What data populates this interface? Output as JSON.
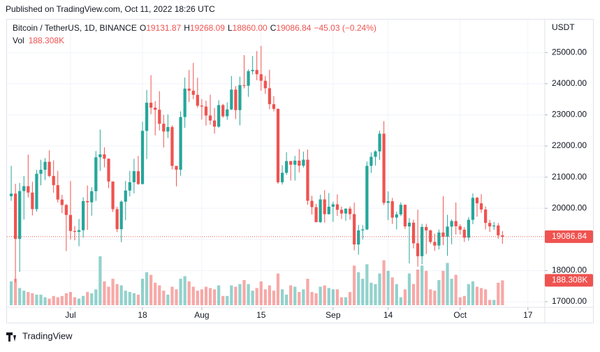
{
  "published": "Published on TradingView.com, Oct 11, 2022 18:26 UTC",
  "footer": "TradingView",
  "chart_data": {
    "type": "candlestick",
    "symbol": "Bitcoin / TetherUS, 1D, BINANCE",
    "info_keys": [
      "O",
      "H",
      "L",
      "C"
    ],
    "info_values": [
      "19131.87",
      "19268.09",
      "18860.00",
      "19086.84"
    ],
    "change": "−45.03 (−0.24%)",
    "volume_title": "Vol",
    "volume_label": "188.308K",
    "currency": "USDT",
    "up_color": "#26a69a",
    "down_color": "#ef5350",
    "x": [
      "2022-06-17",
      "2022-06-18",
      "2022-06-19",
      "2022-06-20",
      "2022-06-21",
      "2022-06-22",
      "2022-06-23",
      "2022-06-24",
      "2022-06-25",
      "2022-06-26",
      "2022-06-27",
      "2022-06-28",
      "2022-06-29",
      "2022-06-30",
      "2022-07-01",
      "2022-07-02",
      "2022-07-03",
      "2022-07-04",
      "2022-07-05",
      "2022-07-06",
      "2022-07-07",
      "2022-07-08",
      "2022-07-09",
      "2022-07-10",
      "2022-07-11",
      "2022-07-12",
      "2022-07-13",
      "2022-07-14",
      "2022-07-15",
      "2022-07-16",
      "2022-07-17",
      "2022-07-18",
      "2022-07-19",
      "2022-07-20",
      "2022-07-21",
      "2022-07-22",
      "2022-07-23",
      "2022-07-24",
      "2022-07-25",
      "2022-07-26",
      "2022-07-27",
      "2022-07-28",
      "2022-07-29",
      "2022-07-30",
      "2022-07-31",
      "2022-08-01",
      "2022-08-02",
      "2022-08-03",
      "2022-08-04",
      "2022-08-05",
      "2022-08-06",
      "2022-08-07",
      "2022-08-08",
      "2022-08-09",
      "2022-08-10",
      "2022-08-11",
      "2022-08-12",
      "2022-08-13",
      "2022-08-14",
      "2022-08-15",
      "2022-08-16",
      "2022-08-17",
      "2022-08-18",
      "2022-08-19",
      "2022-08-20",
      "2022-08-21",
      "2022-08-22",
      "2022-08-23",
      "2022-08-24",
      "2022-08-25",
      "2022-08-26",
      "2022-08-27",
      "2022-08-28",
      "2022-08-29",
      "2022-08-30",
      "2022-08-31",
      "2022-09-01",
      "2022-09-02",
      "2022-09-03",
      "2022-09-04",
      "2022-09-05",
      "2022-09-06",
      "2022-09-07",
      "2022-09-08",
      "2022-09-09",
      "2022-09-10",
      "2022-09-11",
      "2022-09-12",
      "2022-09-13",
      "2022-09-14",
      "2022-09-15",
      "2022-09-16",
      "2022-09-17",
      "2022-09-18",
      "2022-09-19",
      "2022-09-20",
      "2022-09-21",
      "2022-09-22",
      "2022-09-23",
      "2022-09-24",
      "2022-09-25",
      "2022-09-26",
      "2022-09-27",
      "2022-09-28",
      "2022-09-29",
      "2022-09-30",
      "2022-10-01",
      "2022-10-02",
      "2022-10-03",
      "2022-10-04",
      "2022-10-05",
      "2022-10-06",
      "2022-10-07",
      "2022-10-08",
      "2022-10-09",
      "2022-10-10",
      "2022-10-11"
    ],
    "open": [
      20386,
      20471,
      19017,
      20553,
      20710,
      20504,
      19973,
      21109,
      21237,
      21492,
      21038,
      20742,
      20281,
      20105,
      19785,
      19270,
      19243,
      19297,
      20231,
      20191,
      20548,
      21637,
      21731,
      21592,
      20860,
      19971,
      19329,
      20212,
      20569,
      20836,
      21190,
      20779,
      22485,
      23389,
      23231,
      23164,
      22714,
      22465,
      22609,
      21361,
      21239,
      22930,
      23843,
      23775,
      23643,
      23296,
      23266,
      22978,
      22818,
      22622,
      23313,
      22954,
      23175,
      23810,
      23151,
      23954,
      23934,
      24401,
      24442,
      24305,
      24093,
      23856,
      23342,
      23191,
      20834,
      21140,
      21516,
      21399,
      21529,
      21368,
      21560,
      20240,
      20037,
      19555,
      20285,
      19811,
      20050,
      20127,
      19952,
      19832,
      19987,
      19813,
      18838,
      19290,
      19320,
      21362,
      21652,
      21826,
      22395,
      20173,
      20227,
      19702,
      19803,
      20113,
      19417,
      19537,
      18875,
      18461,
      19401,
      19289,
      18920,
      18803,
      19222,
      19084,
      19412,
      19591,
      19423,
      19311,
      19057,
      19629,
      20338,
      20158,
      19960,
      19530,
      19417,
      19446,
      19131.87
    ],
    "high": [
      21365,
      20783,
      20815,
      21035,
      21723,
      20850,
      21233,
      21557,
      21614,
      21862,
      21540,
      21200,
      20432,
      20141,
      20876,
      19432,
      19656,
      20354,
      20731,
      20675,
      21839,
      22527,
      21956,
      21600,
      20860,
      20046,
      20250,
      20880,
      21200,
      21588,
      21683,
      22777,
      23800,
      24276,
      23442,
      23757,
      22998,
      23014,
      22663,
      21361,
      23112,
      24199,
      24442,
      24668,
      24194,
      23509,
      23459,
      23647,
      23218,
      23472,
      23354,
      23402,
      24245,
      23926,
      24226,
      24918,
      24456,
      24888,
      25047,
      25211,
      24247,
      24446,
      23600,
      23208,
      21382,
      21800,
      21520,
      21683,
      21900,
      21819,
      21885,
      20402,
      20144,
      20436,
      20580,
      20490,
      20209,
      20444,
      20055,
      20000,
      20058,
      20180,
      19464,
      19459,
      21500,
      21795,
      21860,
      22488,
      22799,
      20541,
      20332,
      19890,
      20189,
      20115,
      19686,
      19634,
      19956,
      19500,
      19500,
      19316,
      19180,
      19316,
      20385,
      19790,
      19645,
      20185,
      19484,
      19395,
      19719,
      20475,
      20365,
      20456,
      20058,
      19627,
      19560,
      19526,
      19268.09
    ],
    "low": [
      20238,
      17622,
      17961,
      19638,
      20349,
      19771,
      19892,
      20737,
      20906,
      21000,
      20499,
      20188,
      19847,
      18626,
      19000,
      18975,
      18782,
      19056,
      19304,
      19762,
      20236,
      21202,
      21316,
      20646,
      19881,
      19235,
      18910,
      19616,
      20383,
      20478,
      20750,
      20763,
      21581,
      23023,
      22341,
      22500,
      21950,
      22257,
      21250,
      20706,
      21043,
      22582,
      23414,
      23502,
      23227,
      22850,
      22654,
      22681,
      22400,
      22586,
      22909,
      22839,
      23155,
      22865,
      22664,
      23852,
      23580,
      24296,
      24111,
      23773,
      23671,
      23180,
      23111,
      20783,
      20761,
      21070,
      20890,
      20890,
      21152,
      21310,
      20112,
      19800,
      19549,
      19530,
      19540,
      19797,
      19565,
      19754,
      19655,
      19600,
      19633,
      18649,
      18510,
      19000,
      19298,
      21136,
      21370,
      21551,
      20100,
      19620,
      19497,
      19320,
      19748,
      19335,
      18232,
      18711,
      18125,
      18200,
      18531,
      18861,
      18634,
      18680,
      18816,
      18471,
      18843,
      19155,
      19160,
      18920,
      18959,
      19490,
      19730,
      19855,
      19320,
      19240,
      19310,
      19021,
      18860
    ],
    "close": [
      20471,
      19017,
      20553,
      20710,
      20504,
      19973,
      21109,
      21237,
      21492,
      21038,
      20742,
      20281,
      20105,
      19785,
      19270,
      19243,
      19297,
      20231,
      20191,
      20548,
      21637,
      21731,
      21592,
      20860,
      19971,
      19329,
      20212,
      20569,
      20836,
      21190,
      20779,
      22485,
      23389,
      23231,
      23164,
      22714,
      22465,
      22609,
      21361,
      21239,
      22930,
      23843,
      23775,
      23643,
      23293,
      23266,
      22978,
      22818,
      22622,
      23313,
      22954,
      23175,
      23810,
      23151,
      23954,
      23934,
      24403,
      24441,
      24305,
      24094,
      23854,
      23342,
      23191,
      20834,
      21140,
      21516,
      21399,
      21529,
      21368,
      21560,
      20241,
      20037,
      19555,
      20285,
      19811,
      20050,
      20127,
      19952,
      19832,
      19986,
      19812,
      18838,
      19290,
      19320,
      21362,
      21652,
      21826,
      22395,
      20173,
      20226,
      19701,
      19803,
      20113,
      19417,
      19537,
      18875,
      18461,
      19401,
      19289,
      18920,
      18803,
      19222,
      19084,
      19412,
      19591,
      19423,
      19310,
      19056,
      19629,
      20337,
      20158,
      19960,
      19530,
      19417,
      19446,
      19131,
      19086.84
    ],
    "volume": [
      180000,
      200000,
      130000,
      110000,
      100000,
      90000,
      80000,
      80000,
      60000,
      50000,
      70000,
      60000,
      70000,
      90000,
      100000,
      60000,
      50000,
      70000,
      100000,
      90000,
      120000,
      370000,
      180000,
      140000,
      200000,
      160000,
      150000,
      110000,
      100000,
      90000,
      80000,
      200000,
      250000,
      230000,
      170000,
      150000,
      110000,
      80000,
      140000,
      120000,
      200000,
      220000,
      180000,
      140000,
      110000,
      120000,
      140000,
      130000,
      120000,
      150000,
      70000,
      70000,
      150000,
      140000,
      160000,
      190000,
      160000,
      110000,
      130000,
      180000,
      120000,
      150000,
      110000,
      240000,
      120000,
      80000,
      150000,
      140000,
      100000,
      120000,
      200000,
      100000,
      90000,
      140000,
      150000,
      130000,
      120000,
      120000,
      60000,
      60000,
      100000,
      300000,
      250000,
      200000,
      310000,
      170000,
      160000,
      240000,
      340000,
      260000,
      210000,
      160000,
      60000,
      120000,
      240000,
      160000,
      270000,
      300000,
      260000,
      120000,
      110000,
      190000,
      260000,
      320000,
      200000,
      230000,
      60000,
      70000,
      160000,
      180000,
      140000,
      130000,
      120000,
      40000,
      40000,
      170000,
      188308
    ],
    "xlim": [
      "2022-06-16",
      "2022-10-21"
    ],
    "xticks": [
      {
        "value": "2022-07-01",
        "label": "Jul"
      },
      {
        "value": "2022-07-18",
        "label": "18"
      },
      {
        "value": "2022-08-01",
        "label": "Aug"
      },
      {
        "value": "2022-08-15",
        "label": "15"
      },
      {
        "value": "2022-09-01",
        "label": "Sep"
      },
      {
        "value": "2022-09-14",
        "label": "14"
      },
      {
        "value": "2022-10-01",
        "label": "Oct"
      },
      {
        "value": "2022-10-17",
        "label": "17"
      }
    ],
    "ylim": [
      16820,
      26060
    ],
    "yticks": [
      {
        "value": 17000,
        "label": "17000.00"
      },
      {
        "value": 18000,
        "label": "18000.00"
      },
      {
        "value": 19000,
        "label": "19000.00"
      },
      {
        "value": 20000,
        "label": "20000.00"
      },
      {
        "value": 21000,
        "label": "21000.00"
      },
      {
        "value": 22000,
        "label": "22000.00"
      },
      {
        "value": 23000,
        "label": "23000.00"
      },
      {
        "value": 24000,
        "label": "24000.00"
      },
      {
        "value": 25000,
        "label": "25000.00"
      }
    ],
    "grid": true
  }
}
